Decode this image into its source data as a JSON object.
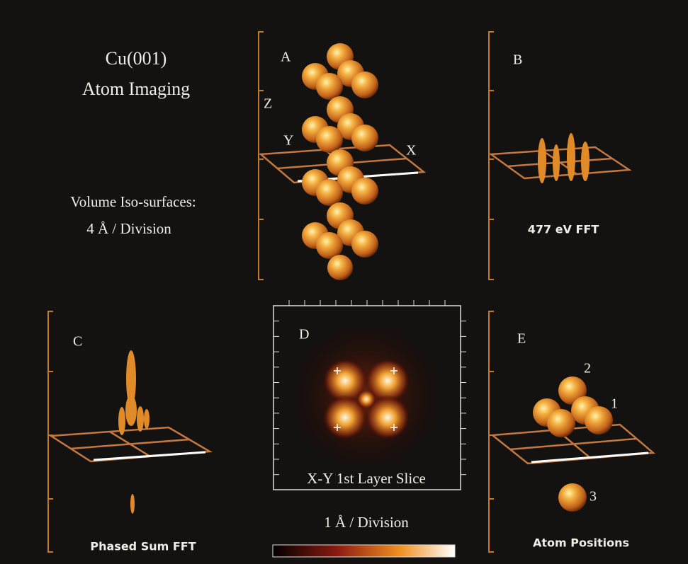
{
  "title": {
    "line1": "Cu(001)",
    "line2": "Atom Imaging"
  },
  "note": {
    "line1": "Volume Iso-surfaces:",
    "line2": "4 Å / Division"
  },
  "panels": [
    {
      "label": "A",
      "axes": [
        "Z",
        "Y",
        "X"
      ]
    },
    {
      "label": "B",
      "caption": "477 eV FFT"
    },
    {
      "label": "C",
      "caption": "Phased Sum FFT"
    },
    {
      "label": "D",
      "inset": "X-Y 1st Layer Slice",
      "caption": "1 Å / Division"
    },
    {
      "label": "E",
      "caption": "Atom Positions",
      "atoms": [
        "2",
        "1",
        "3"
      ]
    }
  ]
}
